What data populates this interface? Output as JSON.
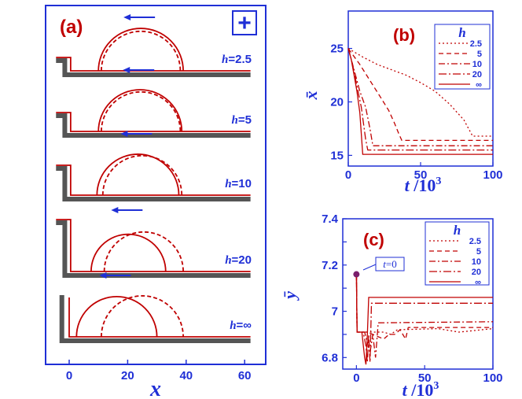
{
  "colors": {
    "axis": "#1f2fd6",
    "curve": "#c00000",
    "substrate": "#555555",
    "label": "#c00000"
  },
  "chart_data": [
    {
      "type": "line",
      "panel": "(a)",
      "badge": "+",
      "xlabel": "x",
      "xlim": [
        -7,
        63
      ],
      "xticks": [
        "0",
        "20",
        "40",
        "60"
      ],
      "tick_values": [
        0,
        20,
        40,
        60
      ],
      "rows": [
        {
          "label": "h=2.5",
          "label_h": "h",
          "label_val": "=2.5",
          "step": 2.5,
          "solid": [
            10,
            39
          ],
          "dashed": [
            11,
            38
          ]
        },
        {
          "label": "h=5",
          "label_h": "h",
          "label_val": "=5",
          "step": 5,
          "solid": [
            10,
            38.5
          ],
          "dashed": [
            11,
            38
          ]
        },
        {
          "label": "h=10",
          "label_h": "h",
          "label_val": "=10",
          "step": 10,
          "solid": [
            9.5,
            37.5
          ],
          "dashed": [
            11.5,
            38.5
          ]
        },
        {
          "label": "h=20",
          "label_h": "h",
          "label_val": "=20",
          "step": 20,
          "solid": [
            7.5,
            33
          ],
          "dashed": [
            12,
            39
          ]
        },
        {
          "label": "h=∞",
          "label_h": "h",
          "label_val": "=∞",
          "step": 999,
          "solid": [
            2.5,
            30
          ],
          "dashed": [
            11,
            39
          ]
        }
      ]
    },
    {
      "type": "line",
      "panel": "(b)",
      "ylabel": "x̄",
      "xlabel": "t /10³",
      "xlabel_main": "t",
      "xlabel_rest": " /10",
      "xlabel_sup": "3",
      "xlim": [
        0,
        100
      ],
      "ylim": [
        14,
        28.5
      ],
      "xticks": [
        0,
        50,
        100
      ],
      "yticks": [
        15,
        20,
        25
      ],
      "legend_title": "h",
      "legend_position": "top-right",
      "series": [
        {
          "name": "2.5",
          "dash": "2,3",
          "points": [
            [
              0,
              25
            ],
            [
              10,
              24.2
            ],
            [
              20,
              23.5
            ],
            [
              30,
              23
            ],
            [
              40,
              22.5
            ],
            [
              50,
              21.8
            ],
            [
              60,
              21
            ],
            [
              70,
              19.8
            ],
            [
              80,
              18.3
            ],
            [
              86,
              16.8
            ],
            [
              100,
              16.8
            ]
          ]
        },
        {
          "name": "5",
          "dash": "6,4",
          "points": [
            [
              0,
              25
            ],
            [
              8,
              23.5
            ],
            [
              15,
              22
            ],
            [
              22,
              20.5
            ],
            [
              28,
              19.2
            ],
            [
              32,
              18
            ],
            [
              35,
              17
            ],
            [
              37,
              16.4
            ],
            [
              100,
              16.4
            ]
          ]
        },
        {
          "name": "10",
          "dash": "8,3,2,3",
          "points": [
            [
              0,
              25
            ],
            [
              4,
              23
            ],
            [
              8,
              21
            ],
            [
              12,
              19.5
            ],
            [
              15,
              17.5
            ],
            [
              17,
              15.9
            ],
            [
              100,
              15.9
            ]
          ]
        },
        {
          "name": "20",
          "dash": "10,3,2,3",
          "points": [
            [
              0,
              25
            ],
            [
              3,
              23.5
            ],
            [
              6,
              21.5
            ],
            [
              9,
              19.5
            ],
            [
              12,
              16.5
            ],
            [
              13.5,
              15.5
            ],
            [
              100,
              15.5
            ]
          ]
        },
        {
          "name": "∞",
          "dash": "",
          "points": [
            [
              0,
              25
            ],
            [
              2,
              24
            ],
            [
              4,
              22.5
            ],
            [
              6,
              21
            ],
            [
              8,
              19
            ],
            [
              10,
              15.1
            ],
            [
              100,
              15.1
            ]
          ]
        }
      ]
    },
    {
      "type": "line",
      "panel": "(c)",
      "ylabel": "ȳ",
      "xlabel": "t /10³",
      "xlabel_main": "t",
      "xlabel_rest": " /10",
      "xlabel_sup": "3",
      "xlim": [
        -10,
        100
      ],
      "ylim": [
        6.75,
        7.4
      ],
      "xticks": [
        0,
        50,
        100
      ],
      "yticks": [
        "6.8",
        "6.9",
        "7",
        "7.1",
        "7.2",
        "7.3",
        "7.4"
      ],
      "ytick_values": [
        6.8,
        6.9,
        7.0,
        7.1,
        7.2,
        7.3,
        7.4
      ],
      "ytick_labels": [
        "6.8",
        "",
        "7",
        "",
        "7.2",
        "",
        "7.4"
      ],
      "annotation": "t=0",
      "annotation_t": "t",
      "annotation_rest": "=0",
      "start_point": [
        0,
        7.16
      ],
      "legend_title": "h",
      "legend_position": "top-right",
      "series": [
        {
          "name": "2.5",
          "dash": "2,3",
          "points": [
            [
              0,
              7.16
            ],
            [
              0.5,
              6.91
            ],
            [
              20,
              6.91
            ],
            [
              25,
              6.9
            ],
            [
              30,
              6.92
            ],
            [
              60,
              6.925
            ],
            [
              75,
              6.91
            ],
            [
              100,
              6.925
            ]
          ]
        },
        {
          "name": "5",
          "dash": "6,4",
          "points": [
            [
              0,
              7.16
            ],
            [
              0.5,
              6.91
            ],
            [
              8,
              6.91
            ],
            [
              12,
              6.9
            ],
            [
              16,
              6.89
            ],
            [
              20,
              6.88
            ],
            [
              24,
              6.9
            ],
            [
              28,
              6.9
            ],
            [
              32,
              6.92
            ],
            [
              36,
              6.88
            ],
            [
              38,
              6.93
            ],
            [
              100,
              6.93
            ]
          ]
        },
        {
          "name": "10",
          "dash": "8,3,2,3",
          "points": [
            [
              0,
              7.16
            ],
            [
              0.5,
              6.91
            ],
            [
              6,
              6.91
            ],
            [
              10,
              6.82
            ],
            [
              12,
              6.9
            ],
            [
              14,
              6.8
            ],
            [
              16,
              6.95
            ],
            [
              100,
              6.955
            ]
          ]
        },
        {
          "name": "20",
          "dash": "10,3,2,3",
          "points": [
            [
              0,
              7.16
            ],
            [
              0.5,
              6.91
            ],
            [
              5,
              6.91
            ],
            [
              7,
              6.85
            ],
            [
              8,
              6.78
            ],
            [
              9,
              6.9
            ],
            [
              10,
              6.78
            ],
            [
              11,
              7.035
            ],
            [
              100,
              7.035
            ]
          ]
        },
        {
          "name": "∞",
          "dash": "",
          "points": [
            [
              0,
              7.16
            ],
            [
              0.5,
              6.91
            ],
            [
              4,
              6.91
            ],
            [
              6,
              6.8
            ],
            [
              7,
              6.77
            ],
            [
              8,
              6.9
            ],
            [
              9,
              7.06
            ],
            [
              100,
              7.06
            ]
          ]
        }
      ]
    }
  ]
}
